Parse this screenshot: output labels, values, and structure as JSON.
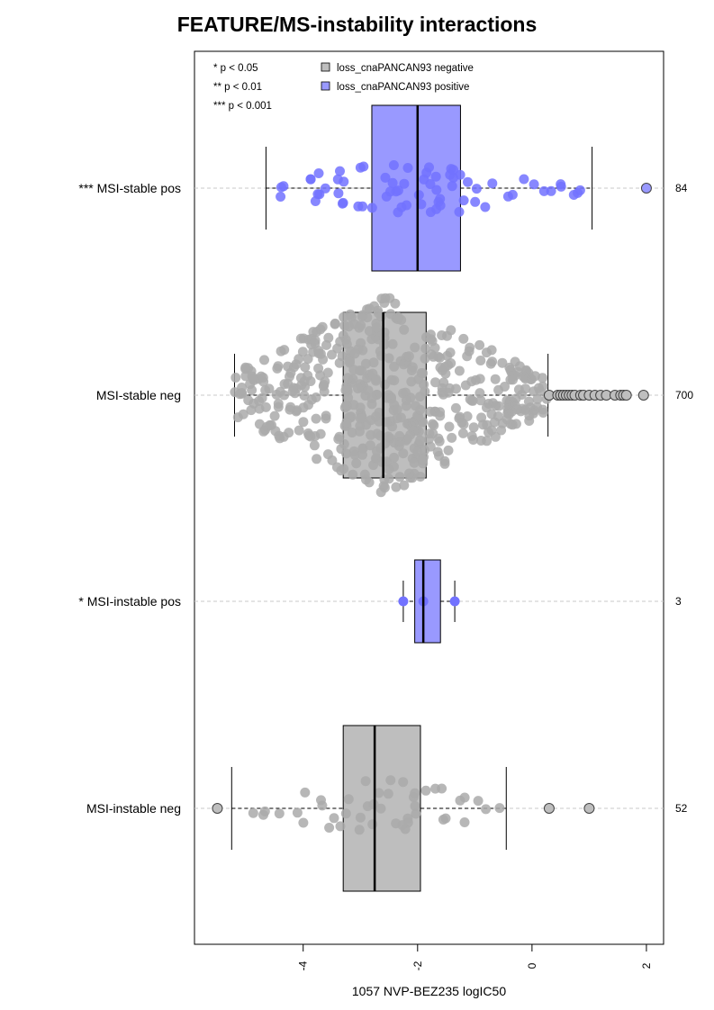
{
  "chart_data": {
    "type": "box",
    "title": "FEATURE/MS-instability interactions",
    "xlabel": "1057 NVP-BEZ235 logIC50",
    "xticks": [
      -4,
      -2,
      0,
      2
    ],
    "xlim": [
      -5.9,
      2.3
    ],
    "orientation": "horizontal",
    "significance_legend": [
      "* p < 0.05",
      "** p < 0.01",
      "*** p < 0.001"
    ],
    "legend": [
      {
        "label": "loss_cnaPANCAN93 negative",
        "color": "#bebebe"
      },
      {
        "label": "loss_cnaPANCAN93 positive",
        "color": "#9999ff"
      }
    ],
    "groups": [
      {
        "label": "*** MSI-stable pos",
        "n": "84",
        "feature": "positive",
        "q1": -2.8,
        "median": -2.0,
        "q3": -1.25,
        "whisker_low": -4.65,
        "whisker_high": 1.05,
        "outliers": [
          2.0
        ]
      },
      {
        "label": "MSI-stable neg",
        "n": "700",
        "feature": "negative",
        "q1": -3.3,
        "median": -2.6,
        "q3": -1.85,
        "whisker_low": -5.2,
        "whisker_high": 0.28,
        "outliers": [
          0.3,
          0.45,
          0.5,
          0.55,
          0.6,
          0.65,
          0.7,
          0.75,
          0.85,
          0.9,
          1.0,
          1.1,
          1.2,
          1.3,
          1.45,
          1.55,
          1.6,
          1.65,
          1.95
        ]
      },
      {
        "label": "* MSI-instable pos",
        "n": "3",
        "feature": "positive",
        "q1": -2.05,
        "median": -1.9,
        "q3": -1.6,
        "whisker_low": -2.25,
        "whisker_high": -1.35,
        "outliers": []
      },
      {
        "label": "MSI-instable neg",
        "n": "52",
        "feature": "negative",
        "q1": -3.3,
        "median": -2.75,
        "q3": -1.95,
        "whisker_low": -5.25,
        "whisker_high": -0.45,
        "outliers": [
          -5.5,
          0.3,
          1.0
        ]
      }
    ],
    "colors": {
      "positive": "#9999ff",
      "negative": "#bebebe",
      "positive_point": "#7272ff",
      "negative_point": "#aaaaaa"
    }
  }
}
